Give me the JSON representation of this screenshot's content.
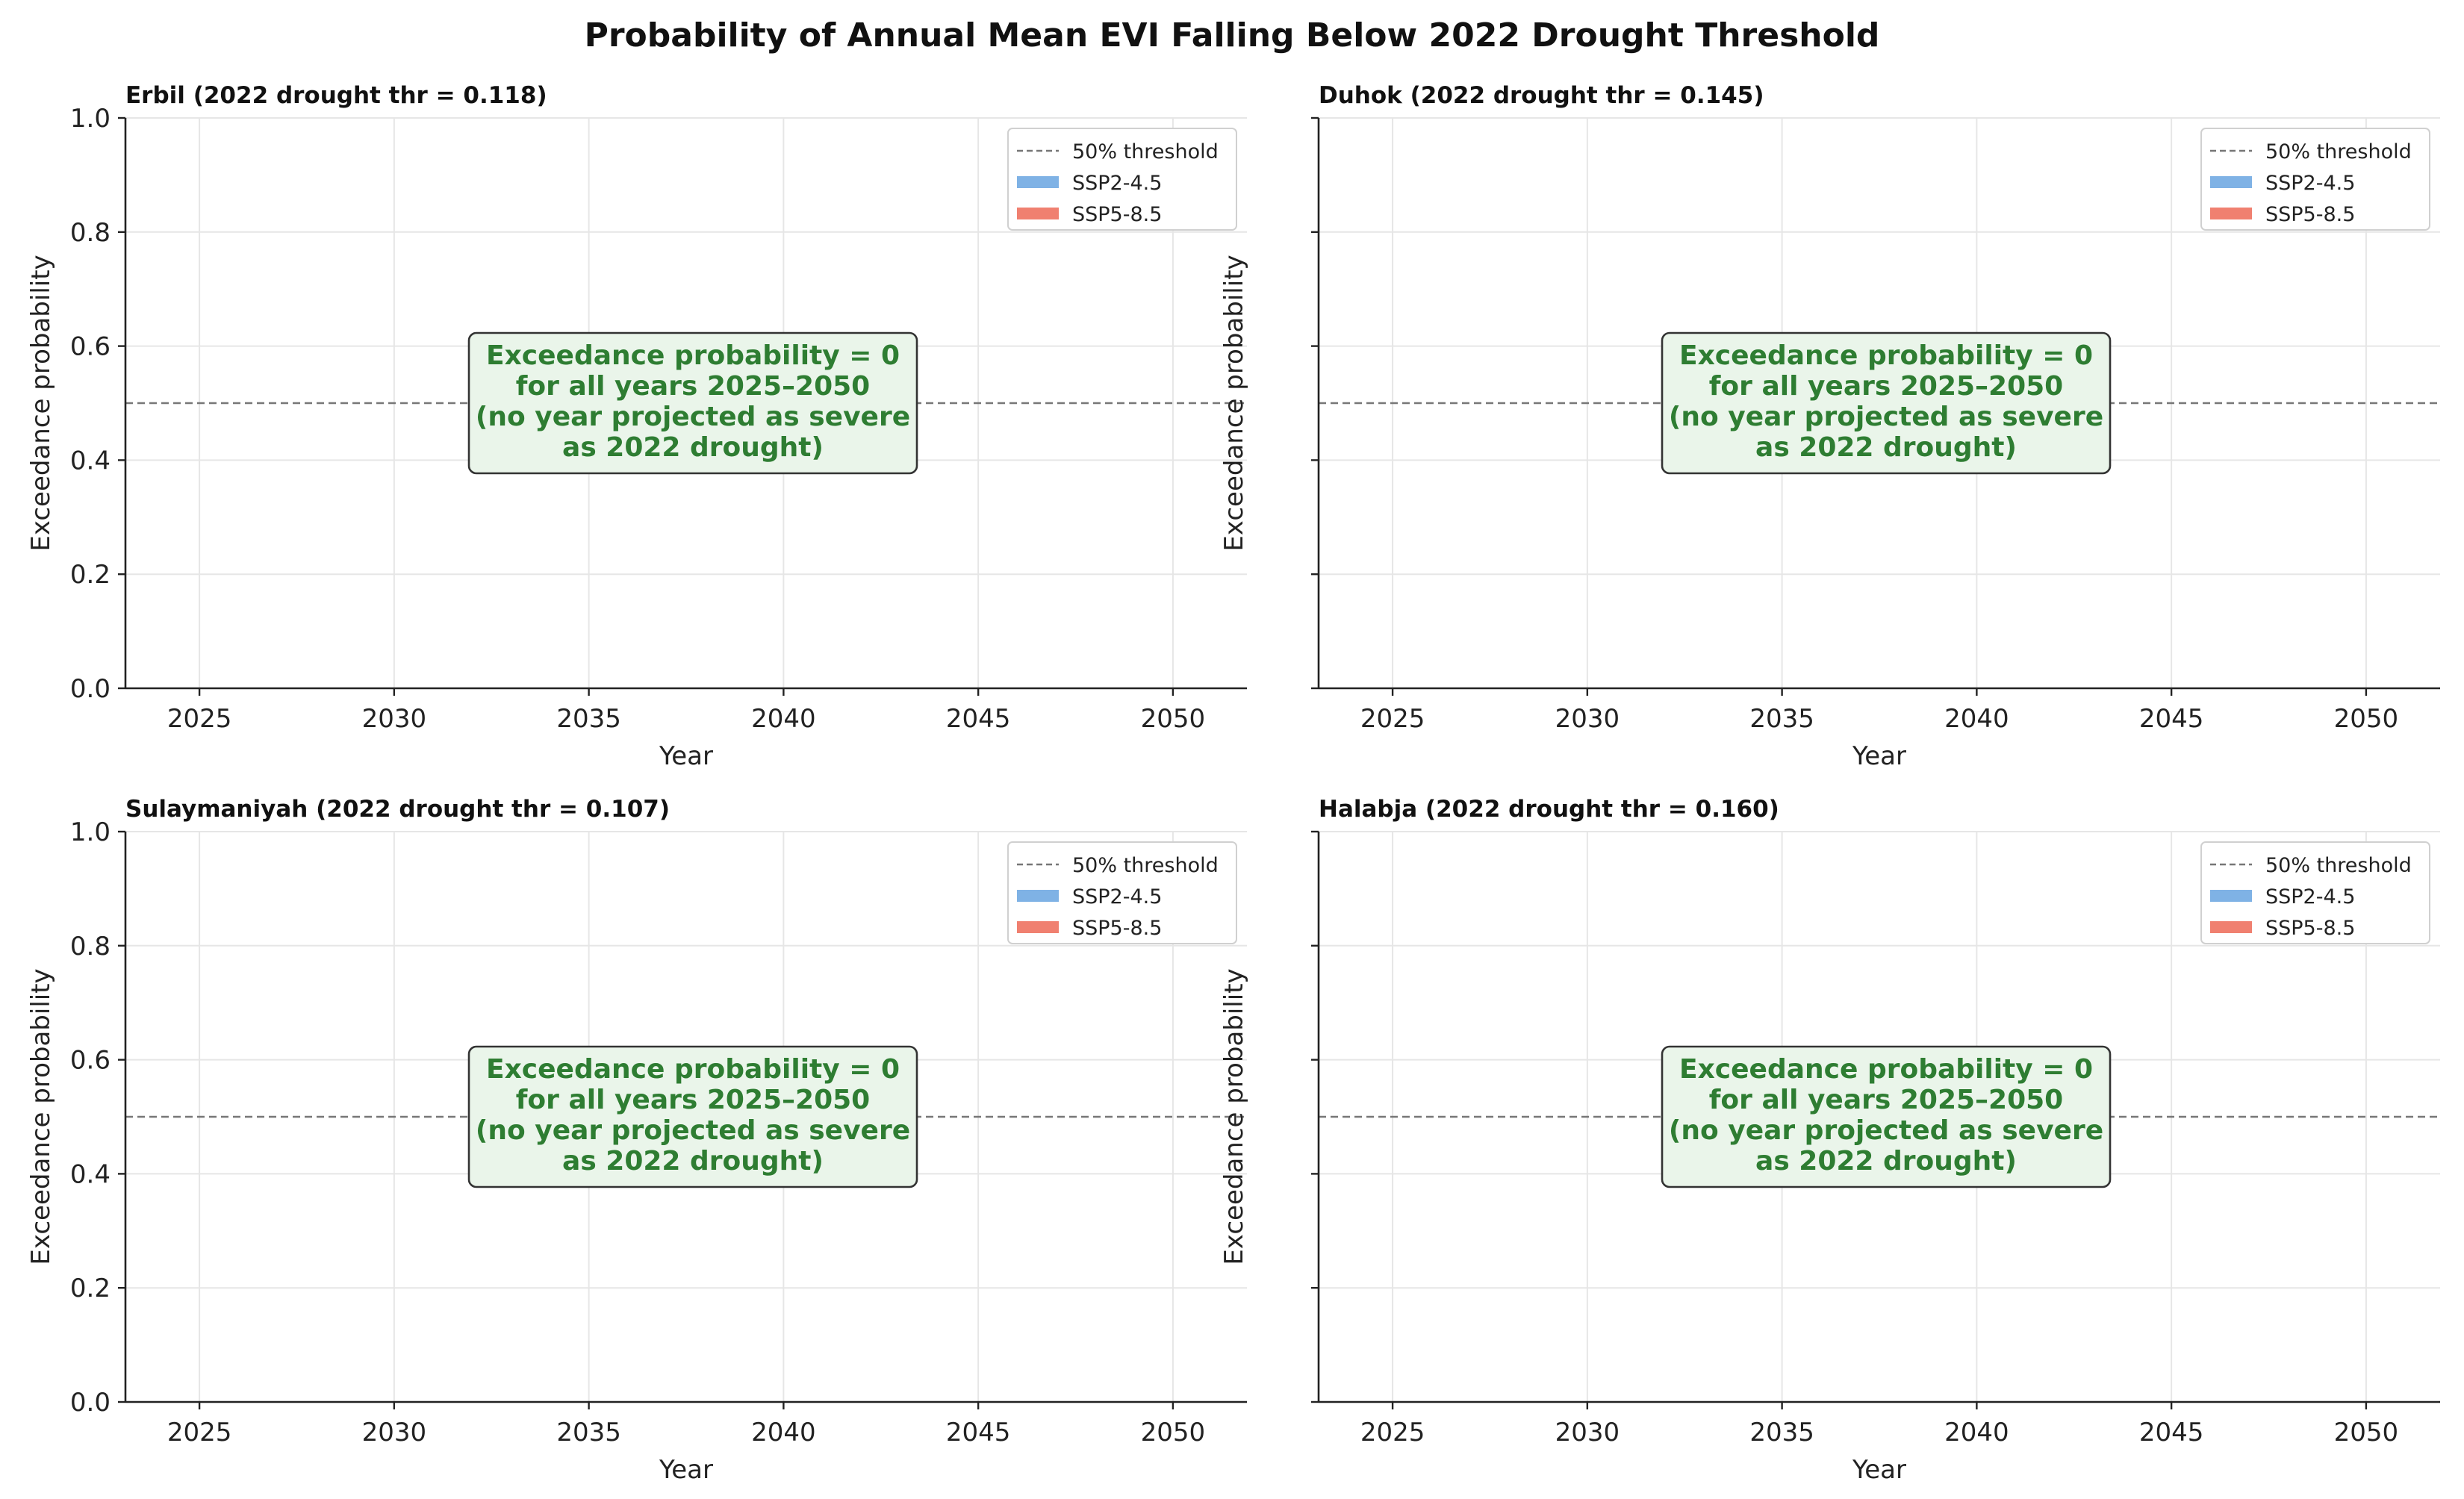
{
  "figure_title": "Probability of Annual Mean EVI Falling Below 2022 Drought Threshold",
  "colors": {
    "ssp245": "#7fb2e5",
    "ssp585": "#f08070",
    "threshold_line": "#777777",
    "grid": "#e6e6e6",
    "note_text": "#2e7d32",
    "note_fill": "#eaf5ea",
    "note_border": "#333333"
  },
  "chart_data": [
    {
      "type": "line",
      "title": "Erbil  (2022 drought thr = 0.118)",
      "xlabel": "Year",
      "ylabel": "Exceedance probability",
      "xlim": [
        2023.1,
        2051.9
      ],
      "ylim": [
        0,
        1
      ],
      "xticks": [
        2025,
        2030,
        2035,
        2040,
        2045,
        2050
      ],
      "yticks": [
        0.0,
        0.2,
        0.4,
        0.6,
        0.8,
        1.0
      ],
      "ytick_labels": [
        "0.0",
        "0.2",
        "0.4",
        "0.6",
        "0.8",
        "1.0"
      ],
      "grid": true,
      "legend_position": "top-right",
      "legend": [
        "50% threshold",
        "SSP2-4.5",
        "SSP5-8.5"
      ],
      "reference_line": {
        "y": 0.5
      },
      "series": [
        {
          "name": "SSP2-4.5",
          "x": [],
          "values": []
        },
        {
          "name": "SSP5-8.5",
          "x": [],
          "values": []
        }
      ],
      "annotation": [
        "Exceedance probability = 0",
        "for all years 2025–2050",
        "(no year projected as severe",
        "as 2022 drought)"
      ]
    },
    {
      "type": "line",
      "title": "Duhok  (2022 drought thr = 0.145)",
      "xlabel": "Year",
      "ylabel": "Exceedance probability",
      "xlim": [
        2023.1,
        2051.9
      ],
      "ylim": [
        0,
        1
      ],
      "xticks": [
        2025,
        2030,
        2035,
        2040,
        2045,
        2050
      ],
      "yticks": [
        0.0,
        0.2,
        0.4,
        0.6,
        0.8,
        1.0
      ],
      "ytick_labels": [],
      "grid": true,
      "legend_position": "top-right",
      "legend": [
        "50% threshold",
        "SSP2-4.5",
        "SSP5-8.5"
      ],
      "reference_line": {
        "y": 0.5
      },
      "series": [
        {
          "name": "SSP2-4.5",
          "x": [],
          "values": []
        },
        {
          "name": "SSP5-8.5",
          "x": [],
          "values": []
        }
      ],
      "annotation": [
        "Exceedance probability = 0",
        "for all years 2025–2050",
        "(no year projected as severe",
        "as 2022 drought)"
      ]
    },
    {
      "type": "line",
      "title": "Sulaymaniyah  (2022 drought thr = 0.107)",
      "xlabel": "Year",
      "ylabel": "Exceedance probability",
      "xlim": [
        2023.1,
        2051.9
      ],
      "ylim": [
        0,
        1
      ],
      "xticks": [
        2025,
        2030,
        2035,
        2040,
        2045,
        2050
      ],
      "yticks": [
        0.0,
        0.2,
        0.4,
        0.6,
        0.8,
        1.0
      ],
      "ytick_labels": [
        "0.0",
        "0.2",
        "0.4",
        "0.6",
        "0.8",
        "1.0"
      ],
      "grid": true,
      "legend_position": "top-right",
      "legend": [
        "50% threshold",
        "SSP2-4.5",
        "SSP5-8.5"
      ],
      "reference_line": {
        "y": 0.5
      },
      "series": [
        {
          "name": "SSP2-4.5",
          "x": [],
          "values": []
        },
        {
          "name": "SSP5-8.5",
          "x": [],
          "values": []
        }
      ],
      "annotation": [
        "Exceedance probability = 0",
        "for all years 2025–2050",
        "(no year projected as severe",
        "as 2022 drought)"
      ]
    },
    {
      "type": "line",
      "title": "Halabja  (2022 drought thr = 0.160)",
      "xlabel": "Year",
      "ylabel": "Exceedance probability",
      "xlim": [
        2023.1,
        2051.9
      ],
      "ylim": [
        0,
        1
      ],
      "xticks": [
        2025,
        2030,
        2035,
        2040,
        2045,
        2050
      ],
      "yticks": [
        0.0,
        0.2,
        0.4,
        0.6,
        0.8,
        1.0
      ],
      "ytick_labels": [],
      "grid": true,
      "legend_position": "top-right",
      "legend": [
        "50% threshold",
        "SSP2-4.5",
        "SSP5-8.5"
      ],
      "reference_line": {
        "y": 0.5
      },
      "series": [
        {
          "name": "SSP2-4.5",
          "x": [],
          "values": []
        },
        {
          "name": "SSP5-8.5",
          "x": [],
          "values": []
        }
      ],
      "annotation": [
        "Exceedance probability = 0",
        "for all years 2025–2050",
        "(no year projected as severe",
        "as 2022 drought)"
      ]
    }
  ]
}
